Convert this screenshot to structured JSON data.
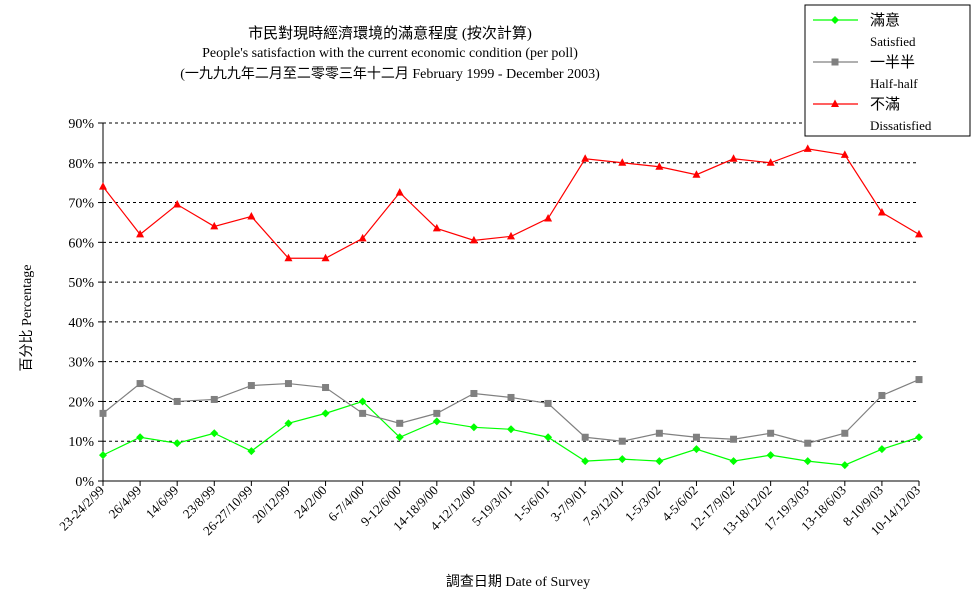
{
  "chart_data": {
    "type": "line",
    "title": "市民對現時經濟環境的滿意程度 (按次計算)",
    "subtitle": "People's satisfaction with the current economic condition  (per poll)",
    "period": "(一九九九年二月至二零零三年十二月 February 1999 - December 2003)",
    "xlabel": "調查日期 Date of Survey",
    "ylabel": "百分比 Percentage",
    "ylim": [
      0,
      90
    ],
    "yticks": [
      "0%",
      "10%",
      "20%",
      "30%",
      "40%",
      "50%",
      "60%",
      "70%",
      "80%",
      "90%"
    ],
    "grid": true,
    "legend_position": "top-right",
    "categories": [
      "23-24/2/99",
      "26/4/99",
      "14/6/99",
      "23/8/99",
      "26-27/10/99",
      "20/12/99",
      "24/2/00",
      "6-7/4/00",
      "9-12/6/00",
      "14-18/9/00",
      "4-12/12/00",
      "5-19/3/01",
      "1-5/6/01",
      "3-7/9/01",
      "7-9/12/01",
      "1-5/3/02",
      "4-5/6/02",
      "12-17/9/02",
      "13-18/12/02",
      "17-19/3/03",
      "13-18/6/03",
      "8-10/9/03",
      "10-14/12/03"
    ],
    "series": [
      {
        "name": "滿意",
        "name_en": "Satisfied",
        "color": "#00ff00",
        "marker": "diamond",
        "values": [
          6.5,
          11,
          9.5,
          12,
          7.5,
          14.5,
          17,
          20,
          11,
          15,
          13.5,
          13,
          11,
          5,
          5.5,
          5,
          8,
          5,
          6.5,
          5,
          4,
          8,
          11
        ]
      },
      {
        "name": "一半半",
        "name_en": "Half-half",
        "color": "#808080",
        "marker": "square",
        "values": [
          17,
          24.5,
          20,
          20.5,
          24,
          24.5,
          23.5,
          17,
          14.5,
          17,
          22,
          21,
          19.5,
          11,
          10,
          12,
          11,
          10.5,
          12,
          9.5,
          12,
          21.5,
          25.5
        ]
      },
      {
        "name": "不滿",
        "name_en": "Dissatisfied",
        "color": "#ff0000",
        "marker": "triangle",
        "values": [
          74,
          62,
          69.5,
          64,
          66.5,
          56,
          56,
          61,
          72.5,
          63.5,
          60.5,
          61.5,
          66,
          81,
          80,
          79,
          77,
          81,
          80,
          83.5,
          82,
          67.5,
          62
        ]
      }
    ]
  }
}
